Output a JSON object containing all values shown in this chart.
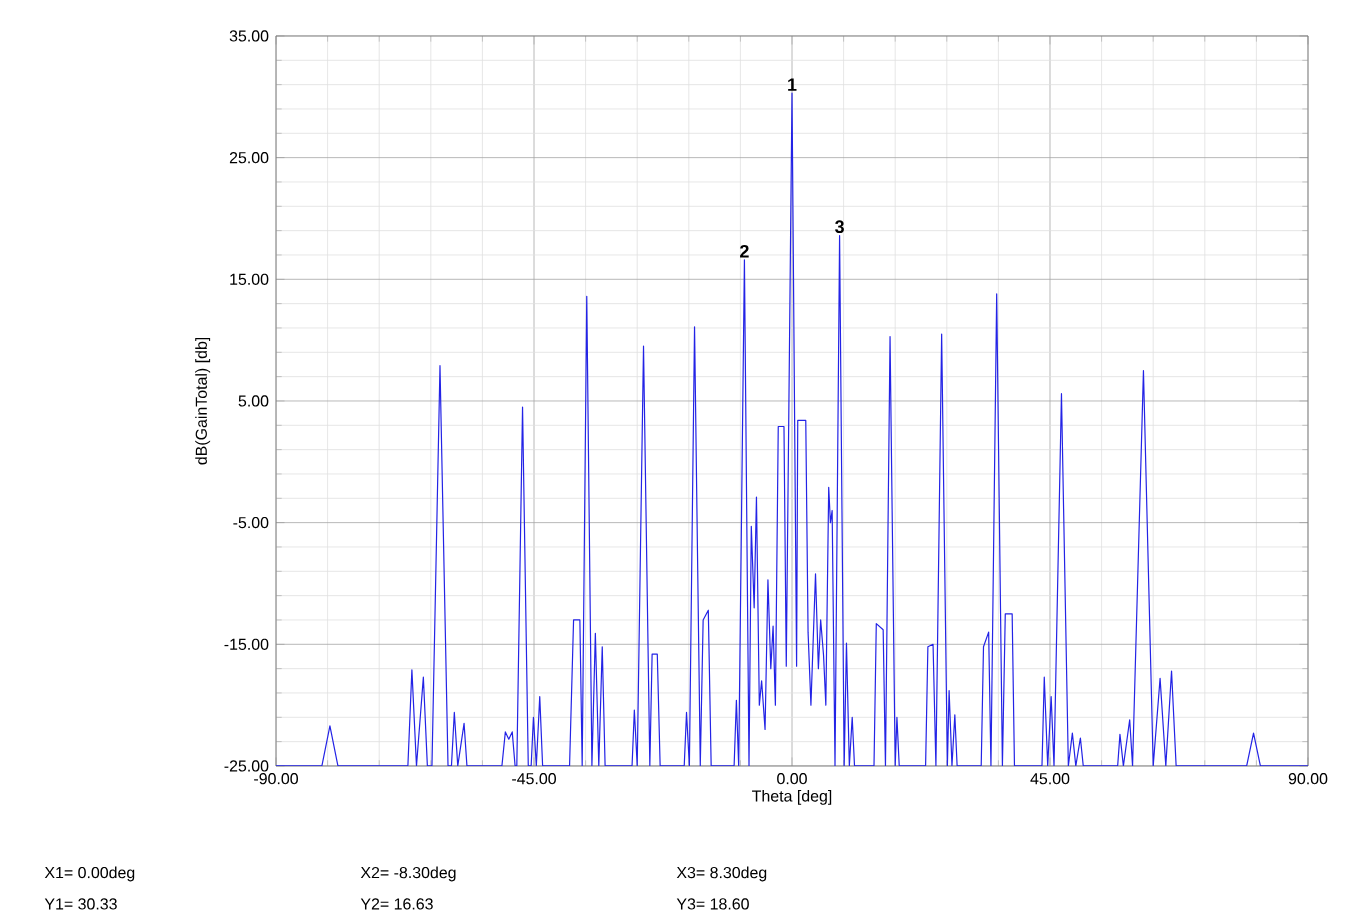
{
  "chart_data": {
    "type": "line",
    "xlabel": "Theta [deg]",
    "ylabel": "dB(GainTotal) [db]",
    "xlim": [
      -90,
      90
    ],
    "ylim": [
      -25,
      35
    ],
    "xticks": [
      {
        "value": -90,
        "label": "-90.00"
      },
      {
        "value": -45,
        "label": "-45.00"
      },
      {
        "value": 0,
        "label": "0.00"
      },
      {
        "value": 45,
        "label": "45.00"
      },
      {
        "value": 90,
        "label": "90.00"
      }
    ],
    "yticks": [
      {
        "value": -25,
        "label": "-25.00"
      },
      {
        "value": -15,
        "label": "-15.00"
      },
      {
        "value": -5,
        "label": "-5.00"
      },
      {
        "value": 5,
        "label": "5.00"
      },
      {
        "value": 15,
        "label": "15.00"
      },
      {
        "value": 25,
        "label": "25.00"
      },
      {
        "value": 35,
        "label": "35.00"
      }
    ],
    "grid": true,
    "marker": "none",
    "line_style": "solid",
    "series": [
      {
        "color": "#2323e6",
        "x": [
          -90,
          -82,
          -80.6,
          -79.2,
          -67,
          -66.3,
          -65.5,
          -64.3,
          -63.6,
          -62.8,
          -61.4,
          -60.0,
          -59.4,
          -58.9,
          -58.3,
          -57.2,
          -56.7,
          -50.6,
          -50.0,
          -49.4,
          -48.8,
          -48.3,
          -48.0,
          -47.0,
          -46.0,
          -45.5,
          -45.1,
          -44.6,
          -44.0,
          -43.5,
          -38.8,
          -38.1,
          -37.0,
          -36.6,
          -35.8,
          -34.9,
          -34.3,
          -33.7,
          -33.1,
          -32.6,
          -27.9,
          -27.5,
          -27.0,
          -25.9,
          -24.8,
          -24.4,
          -23.5,
          -23.0,
          -18.8,
          -18.4,
          -17.9,
          -17.0,
          -16.0,
          -15.5,
          -14.6,
          -14.1,
          -10.1,
          -9.7,
          -9.3,
          -8.3,
          -7.5,
          -7.1,
          -6.6,
          -6.2,
          -5.7,
          -5.3,
          -4.7,
          -4.2,
          -3.7,
          -3.3,
          -2.9,
          -2.4,
          -1.4,
          -1.0,
          0,
          0.8,
          1.0,
          2.4,
          2.8,
          3.3,
          4.1,
          4.6,
          5.0,
          5.5,
          5.9,
          6.4,
          6.7,
          7.0,
          7.5,
          8.3,
          9.1,
          9.5,
          10.0,
          10.5,
          10.9,
          14.3,
          14.7,
          15.9,
          16.3,
          17.1,
          18.0,
          18.3,
          18.7,
          23.3,
          23.7,
          24.6,
          25.1,
          26.1,
          27.1,
          27.4,
          27.9,
          28.4,
          28.8,
          33.0,
          33.4,
          34.3,
          34.7,
          35.7,
          36.7,
          37.2,
          38.4,
          38.8,
          43.6,
          44.0,
          44.6,
          45.2,
          45.7,
          47.0,
          48.2,
          48.9,
          49.5,
          50.3,
          50.8,
          56.8,
          57.2,
          57.8,
          58.9,
          59.4,
          61.3,
          63.0,
          64.2,
          65.2,
          66.2,
          67.0,
          79.3,
          80.5,
          81.7,
          90
        ],
        "values": [
          -25,
          -25,
          -21.7,
          -25,
          -25,
          -17.1,
          -25,
          -17.7,
          -25,
          -25,
          7.9,
          -25,
          -25,
          -20.6,
          -25,
          -21.5,
          -25,
          -25,
          -22.2,
          -22.8,
          -22.2,
          -25,
          -25,
          4.5,
          -25,
          -25,
          -21,
          -25,
          -19.3,
          -25,
          -25,
          -13,
          -13,
          -25,
          13.6,
          -25,
          -14.1,
          -25,
          -15.2,
          -25,
          -25,
          -20.4,
          -25,
          9.5,
          -25,
          -15.8,
          -15.8,
          -25,
          -25,
          -20.6,
          -25,
          11.1,
          -25,
          -13,
          -12.2,
          -25,
          -25,
          -19.6,
          -25,
          16.6,
          -25,
          -5.3,
          -12,
          -2.9,
          -20,
          -18,
          -22,
          -9.7,
          -17,
          -13.5,
          -20,
          2.9,
          2.9,
          -16.8,
          30.3,
          -16.8,
          3.4,
          3.4,
          -14,
          -20,
          -9.2,
          -17,
          -13,
          -15.9,
          -20,
          -2.1,
          -5,
          -4,
          -25,
          18.6,
          -25,
          -14.9,
          -25,
          -21,
          -25,
          -25,
          -13.3,
          -13.8,
          -25,
          10.3,
          -25,
          -21,
          -25,
          -25,
          -15.2,
          -15,
          -25,
          10.5,
          -25,
          -18.8,
          -25,
          -20.8,
          -25,
          -25,
          -15.2,
          -14,
          -25,
          13.8,
          -25,
          -12.5,
          -12.5,
          -25,
          -25,
          -17.7,
          -25,
          -19.3,
          -25,
          5.6,
          -25,
          -22.3,
          -25,
          -22.7,
          -25,
          -25,
          -22.4,
          -25,
          -21.2,
          -25,
          7.5,
          -25,
          -17.8,
          -25,
          -17.2,
          -25,
          -25,
          -22.3,
          -25,
          -25
        ]
      }
    ],
    "annotations": [
      {
        "text": "1",
        "x": 0,
        "y": 30.3
      },
      {
        "text": "2",
        "x": -8.3,
        "y": 16.6
      },
      {
        "text": "3",
        "x": 8.3,
        "y": 18.6
      },
      "X1= 0.00deg",
      "Y1= 30.33",
      "X2= -8.30deg",
      "Y2= 16.63",
      "X3= 8.30deg",
      "Y3= 18.60"
    ]
  }
}
